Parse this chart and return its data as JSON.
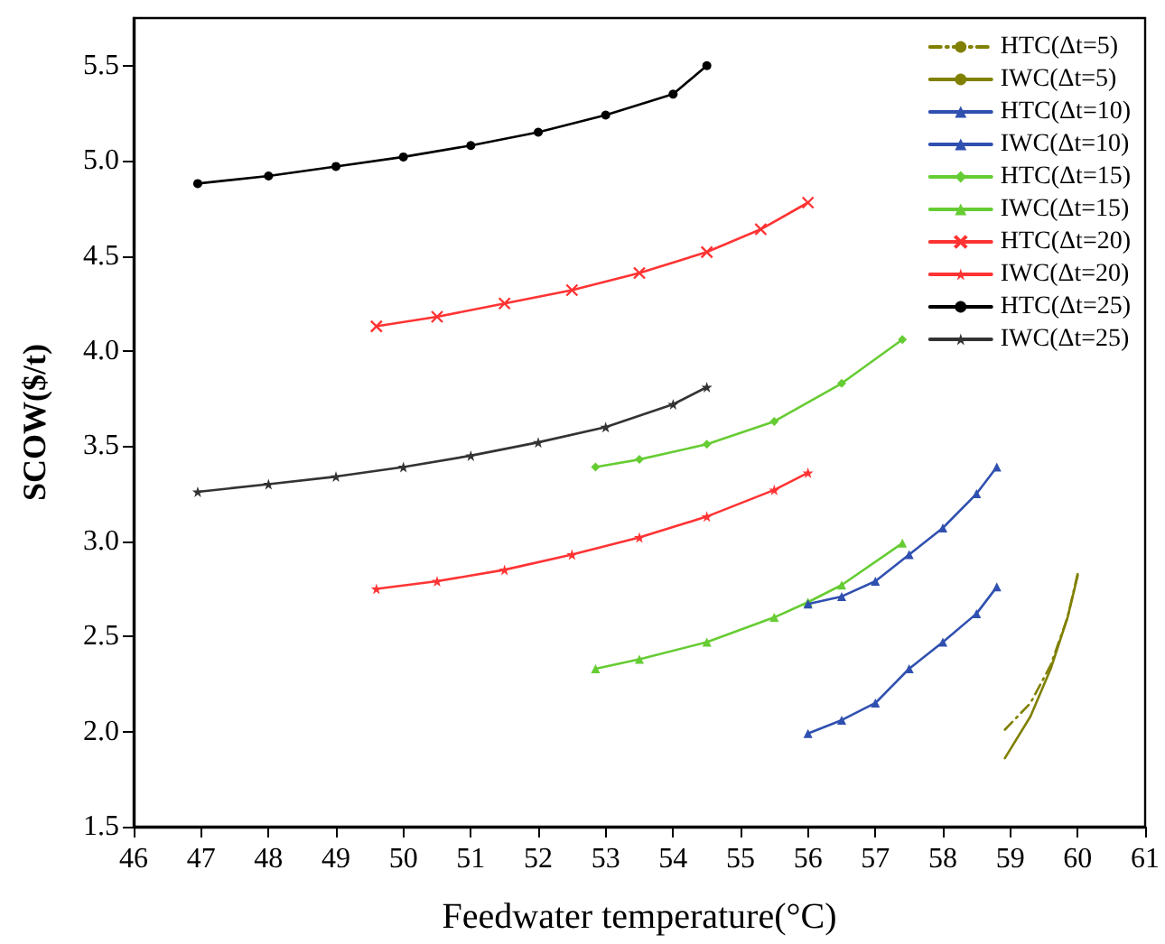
{
  "chart_data": {
    "type": "line",
    "xlabel": "Feedwater temperature(°C)",
    "ylabel": "SCOW($/t)",
    "xlim": [
      46,
      61
    ],
    "xticks": [
      46,
      47,
      48,
      49,
      50,
      51,
      52,
      53,
      54,
      55,
      56,
      57,
      58,
      59,
      60,
      61
    ],
    "ylim": [
      1.5,
      5.75
    ],
    "yticks": [
      1.5,
      {
        "value": 2,
        "label": "2.0"
      },
      2.5,
      {
        "value": 3,
        "label": "3.0"
      },
      3.5,
      {
        "value": 4,
        "label": "4.0"
      },
      4.5,
      {
        "value": 5,
        "label": "5.0"
      },
      5.5
    ],
    "grid": false,
    "legend": "top right",
    "series": [
      {
        "name": "HTC(Δt=5)",
        "color": "#808000",
        "marker": "none",
        "line_style": "dashed",
        "x": [
          58.92,
          59.3,
          59.6,
          59.85,
          60.0
        ],
        "values": [
          2.01,
          2.15,
          2.35,
          2.6,
          2.83
        ]
      },
      {
        "name": "IWC(Δt=5)",
        "color": "#808000",
        "marker": "none",
        "line_style": "solid",
        "x": [
          58.92,
          59.3,
          59.6,
          59.85,
          60.0
        ],
        "values": [
          1.86,
          2.08,
          2.33,
          2.6,
          2.82
        ]
      },
      {
        "name": "HTC(Δt=10)",
        "color": "#3050b0",
        "marker": "triangle",
        "line_style": "solid",
        "x": [
          56,
          56.5,
          57,
          57.5,
          58,
          58.5,
          58.8
        ],
        "values": [
          2.67,
          2.71,
          2.79,
          2.93,
          3.07,
          3.25,
          3.39
        ]
      },
      {
        "name": "IWC(Δt=10)",
        "color": "#3050b0",
        "marker": "triangle",
        "line_style": "solid",
        "x": [
          56,
          56.5,
          57,
          57.5,
          58,
          58.5,
          58.8
        ],
        "values": [
          1.99,
          2.06,
          2.15,
          2.33,
          2.47,
          2.62,
          2.76
        ]
      },
      {
        "name": "HTC(Δt=15)",
        "color": "#66cc33",
        "marker": "diamond",
        "line_style": "solid",
        "x": [
          52.85,
          53.5,
          54.5,
          55.5,
          56.5,
          57.4
        ],
        "values": [
          3.39,
          3.43,
          3.51,
          3.63,
          3.83,
          4.06
        ]
      },
      {
        "name": "IWC(Δt=15)",
        "color": "#66cc33",
        "marker": "triangle",
        "line_style": "solid",
        "x": [
          52.85,
          53.5,
          54.5,
          55.5,
          56,
          56.5,
          57.4
        ],
        "values": [
          2.33,
          2.38,
          2.47,
          2.6,
          2.68,
          2.77,
          2.99
        ]
      },
      {
        "name": "HTC(Δt=20)",
        "color": "#ff3333",
        "marker": "cross",
        "line_style": "solid",
        "x": [
          49.6,
          50.5,
          51.5,
          52.5,
          53.5,
          54.5,
          55.3,
          56.0
        ],
        "values": [
          4.13,
          4.18,
          4.25,
          4.32,
          4.41,
          4.52,
          4.64,
          4.78
        ]
      },
      {
        "name": "IWC(Δt=20)",
        "color": "#ff3333",
        "marker": "star",
        "line_style": "solid",
        "x": [
          49.6,
          50.5,
          51.5,
          52.5,
          53.5,
          54.5,
          55.5,
          56.0
        ],
        "values": [
          2.75,
          2.79,
          2.85,
          2.93,
          3.02,
          3.13,
          3.27,
          3.36
        ]
      },
      {
        "name": "HTC(Δt=25)",
        "color": "#000000",
        "marker": "circle",
        "line_style": "solid",
        "x": [
          46.95,
          48,
          49,
          50,
          51,
          52,
          53,
          54,
          54.5
        ],
        "values": [
          4.88,
          4.92,
          4.97,
          5.02,
          5.08,
          5.15,
          5.24,
          5.35,
          5.5
        ]
      },
      {
        "name": "IWC(Δt=25)",
        "color": "#333333",
        "marker": "star",
        "line_style": "solid",
        "x": [
          46.95,
          48,
          49,
          50,
          51,
          52,
          53,
          54,
          54.5
        ],
        "values": [
          3.26,
          3.3,
          3.34,
          3.39,
          3.45,
          3.52,
          3.6,
          3.72,
          3.81
        ]
      }
    ]
  }
}
